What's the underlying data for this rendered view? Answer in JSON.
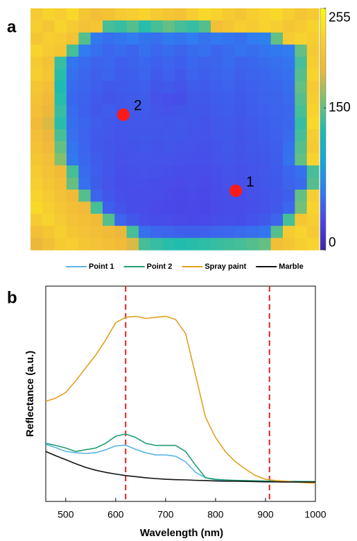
{
  "chart_data": [
    {
      "type": "heatmap",
      "panel_label": "a",
      "clim": [
        0,
        255
      ],
      "colorbar_ticks": [
        0,
        150,
        255
      ],
      "colormap": [
        "#3e26a8",
        "#4a48e8",
        "#2e7ff0",
        "#17a8d8",
        "#20bcb0",
        "#80c070",
        "#f0b83a",
        "#f8d030",
        "#f9fb0e"
      ],
      "marker_color": "#ff1a1a",
      "points": [
        {
          "label": "1",
          "x": 17.08,
          "y": 15.1
        },
        {
          "label": "2",
          "x": 7.73,
          "y": 8.8
        }
      ],
      "values": [
        [
          215,
          225,
          220,
          230,
          210,
          200,
          205,
          215,
          220,
          225,
          215,
          210,
          205,
          220,
          230,
          225,
          215,
          210,
          220,
          225,
          230,
          220,
          210,
          215
        ],
        [
          220,
          210,
          225,
          215,
          205,
          210,
          140,
          135,
          145,
          130,
          140,
          150,
          140,
          135,
          145,
          200,
          210,
          220,
          215,
          225,
          220,
          210,
          215,
          225
        ],
        [
          210,
          220,
          215,
          205,
          145,
          60,
          55,
          58,
          62,
          57,
          55,
          60,
          58,
          62,
          56,
          60,
          58,
          55,
          62,
          65,
          150,
          215,
          225,
          220
        ],
        [
          225,
          215,
          210,
          140,
          62,
          55,
          50,
          52,
          48,
          55,
          50,
          53,
          49,
          52,
          55,
          50,
          52,
          56,
          54,
          58,
          60,
          62,
          150,
          215
        ],
        [
          215,
          205,
          135,
          58,
          52,
          48,
          50,
          45,
          47,
          50,
          46,
          48,
          45,
          50,
          47,
          49,
          52,
          48,
          50,
          53,
          55,
          58,
          140,
          220
        ],
        [
          220,
          210,
          130,
          55,
          50,
          46,
          48,
          44,
          45,
          48,
          43,
          46,
          42,
          47,
          45,
          47,
          50,
          46,
          48,
          50,
          52,
          55,
          145,
          225
        ],
        [
          210,
          200,
          125,
          52,
          48,
          45,
          42,
          43,
          44,
          45,
          40,
          42,
          38,
          44,
          43,
          45,
          47,
          44,
          46,
          48,
          50,
          54,
          150,
          215
        ],
        [
          205,
          195,
          130,
          50,
          47,
          43,
          40,
          42,
          43,
          44,
          38,
          36,
          35,
          42,
          42,
          44,
          45,
          43,
          45,
          47,
          49,
          52,
          145,
          220
        ],
        [
          200,
          190,
          135,
          52,
          46,
          42,
          44,
          41,
          42,
          43,
          40,
          38,
          40,
          41,
          40,
          43,
          44,
          42,
          44,
          46,
          48,
          50,
          140,
          225
        ],
        [
          195,
          185,
          130,
          54,
          48,
          44,
          42,
          40,
          41,
          42,
          41,
          40,
          42,
          40,
          39,
          42,
          43,
          41,
          43,
          45,
          47,
          50,
          135,
          230
        ],
        [
          200,
          190,
          140,
          55,
          47,
          43,
          41,
          39,
          40,
          41,
          40,
          41,
          40,
          39,
          38,
          41,
          42,
          40,
          42,
          44,
          46,
          52,
          140,
          220
        ],
        [
          205,
          195,
          150,
          58,
          48,
          42,
          40,
          38,
          39,
          40,
          39,
          40,
          38,
          38,
          37,
          39,
          41,
          39,
          41,
          43,
          45,
          55,
          145,
          215
        ],
        [
          210,
          200,
          160,
          60,
          50,
          44,
          40,
          37,
          38,
          39,
          38,
          38,
          37,
          36,
          36,
          38,
          40,
          38,
          40,
          42,
          44,
          56,
          150,
          225
        ],
        [
          215,
          205,
          195,
          140,
          52,
          45,
          40,
          36,
          37,
          38,
          37,
          36,
          35,
          35,
          34,
          36,
          38,
          37,
          39,
          41,
          43,
          50,
          55,
          140
        ],
        [
          220,
          210,
          200,
          150,
          55,
          44,
          38,
          35,
          36,
          36,
          35,
          34,
          33,
          34,
          33,
          35,
          37,
          36,
          38,
          40,
          42,
          48,
          52,
          145
        ],
        [
          225,
          215,
          205,
          195,
          145,
          48,
          40,
          36,
          34,
          35,
          34,
          33,
          32,
          33,
          32,
          34,
          36,
          35,
          37,
          39,
          41,
          45,
          150,
          220
        ],
        [
          230,
          220,
          210,
          200,
          195,
          140,
          45,
          38,
          35,
          34,
          33,
          32,
          31,
          32,
          31,
          33,
          35,
          34,
          36,
          38,
          42,
          50,
          155,
          225
        ],
        [
          215,
          225,
          215,
          205,
          200,
          195,
          145,
          48,
          40,
          36,
          35,
          34,
          33,
          32,
          33,
          35,
          36,
          35,
          38,
          42,
          48,
          140,
          210,
          220
        ],
        [
          200,
          210,
          220,
          210,
          205,
          200,
          195,
          190,
          140,
          55,
          50,
          48,
          46,
          45,
          46,
          48,
          50,
          52,
          55,
          58,
          145,
          215,
          225,
          215
        ],
        [
          190,
          200,
          215,
          220,
          210,
          205,
          200,
          195,
          185,
          140,
          135,
          130,
          128,
          130,
          132,
          135,
          138,
          140,
          145,
          150,
          200,
          210,
          220,
          225
        ]
      ]
    },
    {
      "type": "line",
      "panel_label": "b",
      "x_label": "Wavelength (nm)",
      "y_label": "Reflectance (a.u.)",
      "xlim": [
        460,
        1000
      ],
      "xticks": [
        500,
        600,
        700,
        800,
        900,
        1000
      ],
      "ylim": [
        0,
        100
      ],
      "vlines": [
        620,
        908
      ],
      "vline_color": "#e02020",
      "x": [
        460,
        480,
        500,
        520,
        540,
        560,
        580,
        600,
        620,
        640,
        660,
        680,
        700,
        720,
        740,
        760,
        780,
        800,
        820,
        840,
        860,
        880,
        900,
        920,
        940,
        960,
        980,
        1000
      ],
      "series": [
        {
          "name": "Point 1",
          "color": "#5ab4e6",
          "values": [
            26.5,
            25,
            23.2,
            22.6,
            22.3,
            22.6,
            24,
            25.8,
            26.1,
            24.2,
            22.6,
            21.6,
            21.6,
            21,
            18.4,
            13.5,
            11,
            10,
            9.8,
            9.7,
            9.6,
            9.5,
            9.4,
            9.3,
            9.3,
            9.2,
            9.2,
            9.1
          ]
        },
        {
          "name": "Point 2",
          "color": "#1e9e70",
          "values": [
            27,
            26,
            24.8,
            23.2,
            24,
            24.8,
            27,
            30.3,
            31.3,
            29.7,
            27,
            26,
            26,
            26,
            23.2,
            16.8,
            11,
            10.3,
            10,
            9.8,
            9.7,
            9.6,
            9.5,
            9.4,
            9.3,
            9.3,
            9.2,
            9.2
          ]
        },
        {
          "name": "Spray paint",
          "color": "#e0a020",
          "values": [
            46.5,
            48,
            50.6,
            56,
            62,
            68,
            75,
            83,
            85.5,
            86,
            85,
            85.5,
            86,
            84.5,
            78,
            58.7,
            39,
            29.7,
            23,
            18.4,
            15,
            12,
            10.3,
            9.7,
            9.4,
            9,
            8.7,
            8.4
          ]
        },
        {
          "name": "Marble",
          "color": "#111111",
          "values": [
            23.2,
            21.2,
            19.4,
            17.5,
            15.8,
            14.5,
            13.5,
            12.7,
            12,
            11.5,
            11,
            10.6,
            10.3,
            10.1,
            10,
            9.8,
            9.7,
            9.5,
            9.4,
            9.4,
            9.3,
            9.2,
            9.1,
            9.1,
            9,
            9,
            9,
            9
          ]
        }
      ]
    }
  ]
}
